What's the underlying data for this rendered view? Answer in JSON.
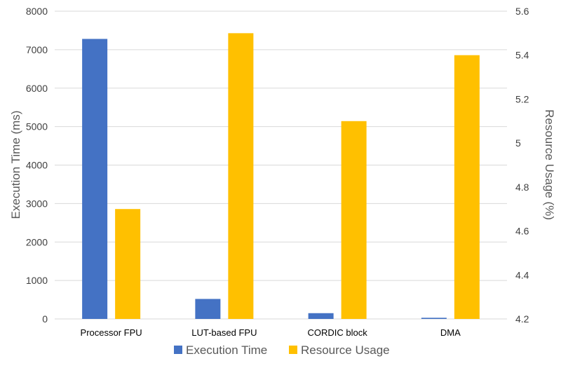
{
  "chart_data": {
    "type": "bar",
    "categories": [
      "Processor FPU",
      "LUT-based FPU",
      "CORDIC block",
      "DMA"
    ],
    "series": [
      {
        "name": "Execution Time",
        "axis": "left",
        "color": "#4472C4",
        "values": [
          7280,
          520,
          150,
          30
        ]
      },
      {
        "name": "Resource Usage",
        "axis": "right",
        "color": "#FFC000",
        "values": [
          4.7,
          5.5,
          5.1,
          5.4
        ]
      }
    ],
    "title": "",
    "xlabel": "",
    "ylabel": "Execution Time (ms)",
    "ylabel_right": "Resource Usage (%)",
    "ylim": [
      0,
      8000
    ],
    "ylim_right": [
      4.2,
      5.6
    ],
    "yticks": [
      "0",
      "1000",
      "2000",
      "3000",
      "4000",
      "5000",
      "6000",
      "7000",
      "8000"
    ],
    "yticks_right": [
      "4.2",
      "4.4",
      "4.6",
      "4.8",
      "5",
      "5.2",
      "5.4",
      "5.6"
    ],
    "grid": true,
    "gridline_color": "#D9D9D9",
    "legend_position": "bottom"
  }
}
